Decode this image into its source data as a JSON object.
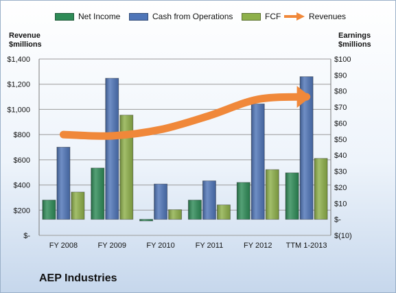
{
  "chart_data": {
    "type": "bar",
    "categories": [
      "FY 2008",
      "FY 2009",
      "FY 2010",
      "FY 2011",
      "FY 2012",
      "TTM 1-2013"
    ],
    "series": [
      {
        "name": "Net Income",
        "axis": "right",
        "color": "#2e8b57",
        "values": [
          12,
          32,
          -1,
          12,
          23,
          29
        ]
      },
      {
        "name": "Cash from Operations",
        "axis": "right",
        "color": "#4f75b8",
        "values": [
          45,
          88,
          22,
          24,
          72,
          89
        ]
      },
      {
        "name": "FCF",
        "axis": "right",
        "color": "#8eb04a",
        "values": [
          17,
          65,
          6,
          9,
          31,
          38
        ]
      },
      {
        "name": "Revenues",
        "axis": "left",
        "type": "line",
        "color": "#f0883a",
        "values": [
          800,
          790,
          840,
          950,
          1080,
          1100
        ]
      }
    ],
    "left_axis": {
      "label_line1": "Revenue",
      "label_line2": "$millions",
      "min": 0,
      "max": 1400,
      "ticks": [
        0,
        200,
        400,
        600,
        800,
        1000,
        1200,
        1400
      ],
      "tick_labels": [
        "$-",
        "$200",
        "$400",
        "$600",
        "$800",
        "$1,000",
        "$1,200",
        "$1,400"
      ]
    },
    "right_axis": {
      "label_line1": "Earnings",
      "label_line2": "$millions",
      "min": -10,
      "max": 100,
      "ticks": [
        -10,
        0,
        10,
        20,
        30,
        40,
        50,
        60,
        70,
        80,
        90,
        100
      ],
      "tick_labels": [
        "$(10)",
        "$-",
        "$10",
        "$20",
        "$30",
        "$40",
        "$50",
        "$60",
        "$70",
        "$80",
        "$90",
        "$100"
      ]
    },
    "grid": true,
    "legend_position": "top"
  },
  "company": "AEP Industries"
}
